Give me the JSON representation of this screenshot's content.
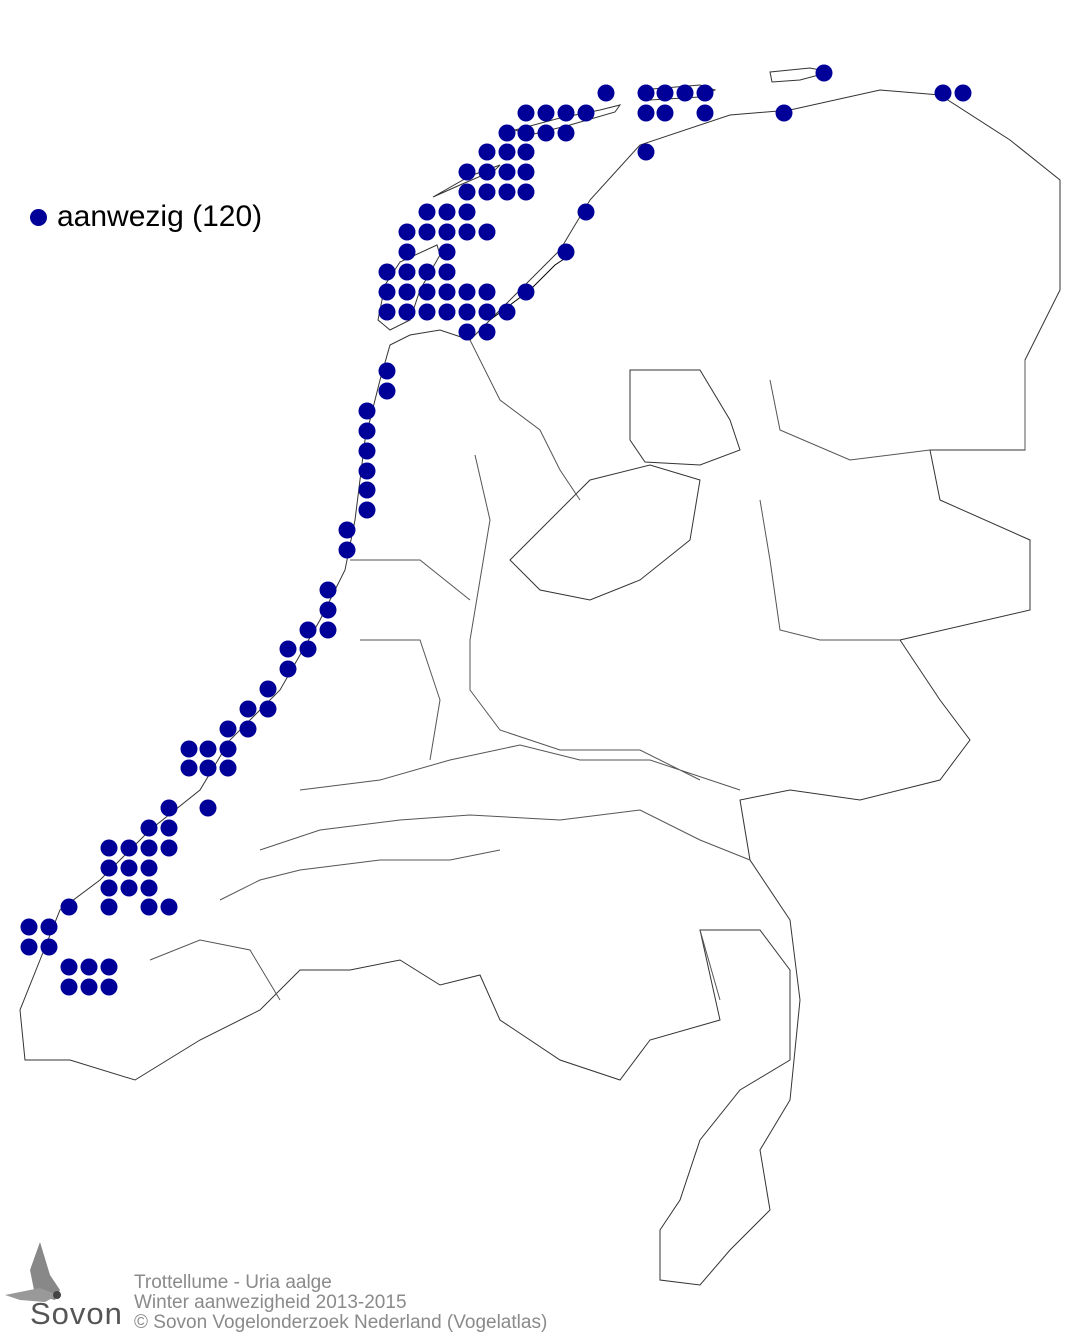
{
  "map": {
    "legend": {
      "label": "aanwezig (120)",
      "color": "#000099",
      "count": 120
    },
    "credits": {
      "line1": "Trottellume - Uria aalge",
      "line2": "Winter aanwezigheid 2013-2015",
      "line3": "© Sovon Vogelonderzoek Nederland (Vogelatlas)"
    },
    "logo": {
      "text": "Sovon",
      "icon": "swallow-icon"
    }
  }
}
